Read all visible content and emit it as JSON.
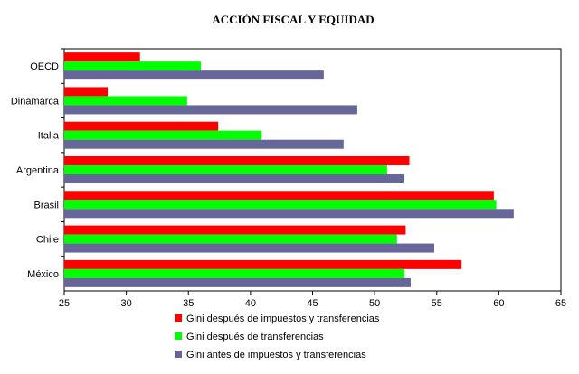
{
  "chart_data": {
    "type": "bar",
    "orientation": "horizontal",
    "title": "ACCIÓN FISCAL Y EQUIDAD",
    "categories": [
      "OECD",
      "Dinamarca",
      "Italia",
      "Argentina",
      "Brasil",
      "Chile",
      "México"
    ],
    "series": [
      {
        "name": "Gini después de impuestos y transferencias",
        "color": "#ff0000",
        "values": [
          31.1,
          28.5,
          37.4,
          52.8,
          59.6,
          52.5,
          57.0
        ]
      },
      {
        "name": "Gini después de transferencias",
        "color": "#00ff00",
        "values": [
          36.0,
          34.9,
          40.9,
          51.0,
          59.8,
          51.8,
          52.4
        ]
      },
      {
        "name": "Gini antes de impuestos y transferencias",
        "color": "#666699",
        "values": [
          45.9,
          48.6,
          47.5,
          52.4,
          61.2,
          54.8,
          52.9
        ]
      }
    ],
    "xlim": [
      25,
      65
    ],
    "xticks": [
      25,
      30,
      35,
      40,
      45,
      50,
      55,
      60,
      65
    ],
    "grid": false,
    "legend": "bottom"
  }
}
